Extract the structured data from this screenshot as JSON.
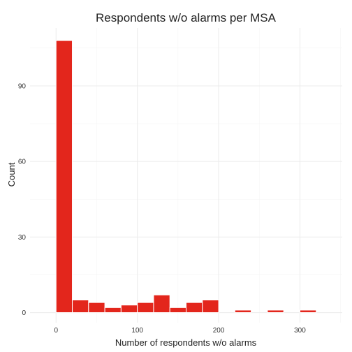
{
  "chart_data": {
    "type": "bar",
    "title": "Respondents w/o alarms per MSA",
    "xlabel": "Number of respondents w/o alarms",
    "ylabel": "Count",
    "xlim": [
      -32,
      352
    ],
    "ylim": [
      -4,
      113
    ],
    "x_ticks": [
      0,
      100,
      200,
      300
    ],
    "y_ticks": [
      0,
      30,
      60,
      90
    ],
    "bin_width": 20,
    "grid": true,
    "legend": "none",
    "bar_color": "#e3261c",
    "bar_outline": "#ffffff",
    "bins": [
      {
        "x_start": 0,
        "x_end": 20,
        "count": 108
      },
      {
        "x_start": 20,
        "x_end": 40,
        "count": 5
      },
      {
        "x_start": 40,
        "x_end": 60,
        "count": 4
      },
      {
        "x_start": 60,
        "x_end": 80,
        "count": 2
      },
      {
        "x_start": 80,
        "x_end": 100,
        "count": 3
      },
      {
        "x_start": 100,
        "x_end": 120,
        "count": 4
      },
      {
        "x_start": 120,
        "x_end": 140,
        "count": 7
      },
      {
        "x_start": 140,
        "x_end": 160,
        "count": 2
      },
      {
        "x_start": 160,
        "x_end": 180,
        "count": 4
      },
      {
        "x_start": 180,
        "x_end": 200,
        "count": 5
      },
      {
        "x_start": 200,
        "x_end": 220,
        "count": 0
      },
      {
        "x_start": 220,
        "x_end": 240,
        "count": 1
      },
      {
        "x_start": 240,
        "x_end": 260,
        "count": 0
      },
      {
        "x_start": 260,
        "x_end": 280,
        "count": 1
      },
      {
        "x_start": 280,
        "x_end": 300,
        "count": 0
      },
      {
        "x_start": 300,
        "x_end": 320,
        "count": 1
      }
    ]
  }
}
